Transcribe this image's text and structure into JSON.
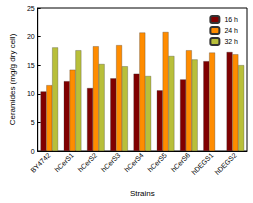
{
  "chart_data": {
    "type": "bar",
    "x_label": "Strains",
    "y_label": "Ceramides (mg/g dry cell)",
    "categories": [
      "BY4742",
      "hCerS1",
      "hCerS2",
      "hCerS3",
      "hCerS4",
      "hCerS5",
      "hCerS6",
      "hDEGS1",
      "hDEGS2"
    ],
    "series": [
      {
        "name": "16 h",
        "color": "#800000",
        "values": [
          10.4,
          12.2,
          11.0,
          12.7,
          13.5,
          10.6,
          12.5,
          15.7,
          17.3
        ]
      },
      {
        "name": "24 h",
        "color": "#ff8c00",
        "values": [
          11.5,
          14.2,
          18.3,
          18.5,
          20.7,
          20.8,
          17.6,
          17.2,
          16.9
        ]
      },
      {
        "name": "32 h",
        "color": "#b8bf3a",
        "values": [
          18.1,
          17.6,
          15.2,
          14.8,
          13.1,
          16.6,
          16.0,
          null,
          15.0
        ]
      }
    ],
    "ylim": [
      0,
      25
    ],
    "yticks": [
      0,
      5,
      10,
      15,
      20,
      25
    ],
    "grid": false,
    "legend": "upper right"
  }
}
